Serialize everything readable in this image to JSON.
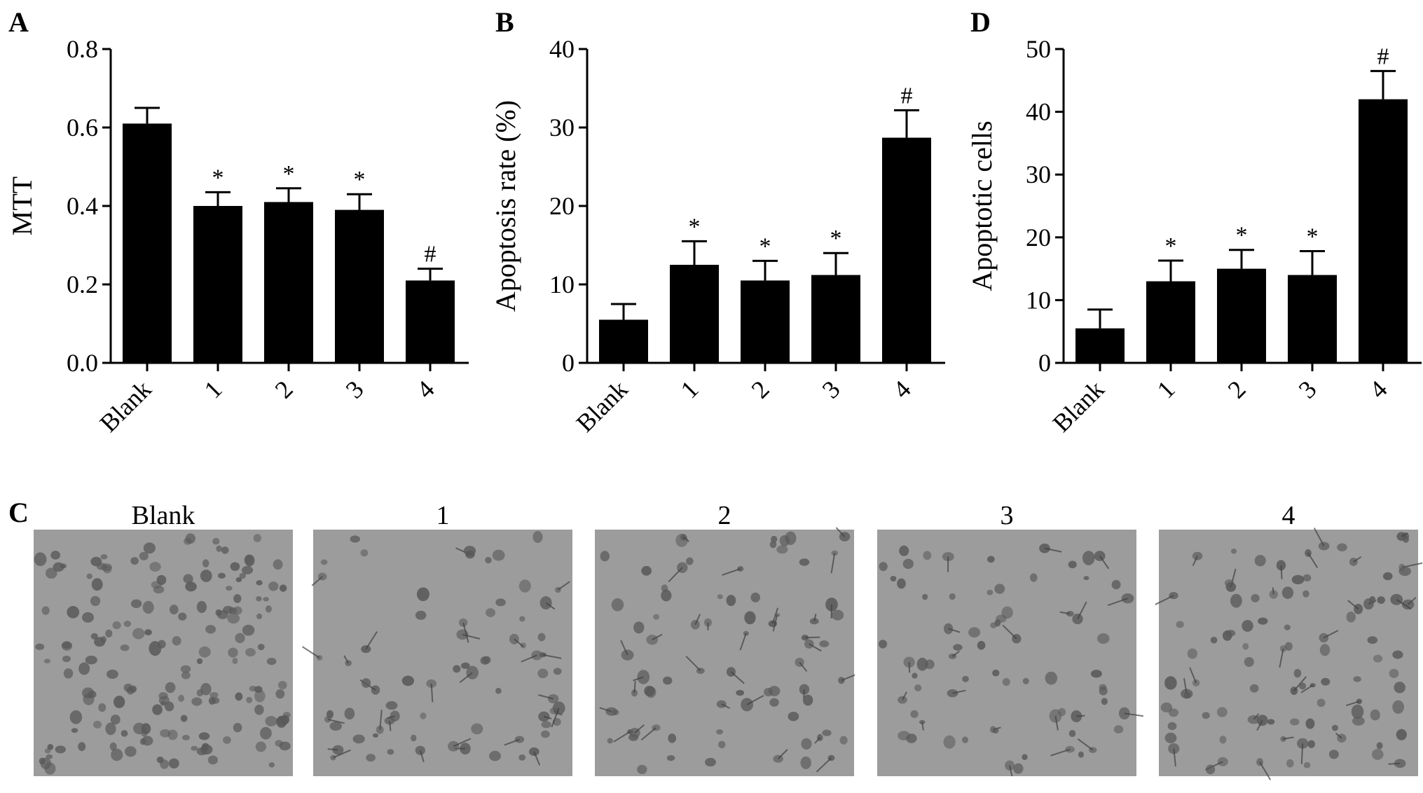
{
  "chart_data": [
    {
      "panel": "A",
      "type": "bar",
      "categories": [
        "Blank",
        "1",
        "2",
        "3",
        "4"
      ],
      "values": [
        0.61,
        0.4,
        0.41,
        0.39,
        0.21
      ],
      "errors": [
        0.04,
        0.035,
        0.035,
        0.04,
        0.03
      ],
      "significance": [
        "",
        "*",
        "*",
        "*",
        "#"
      ],
      "ylabel": "MTT",
      "ylim": [
        0,
        0.8
      ],
      "yticks": [
        "0.0",
        "0.2",
        "0.4",
        "0.6",
        "0.8"
      ],
      "bar_color": "#000000"
    },
    {
      "panel": "B",
      "type": "bar",
      "categories": [
        "Blank",
        "1",
        "2",
        "3",
        "4"
      ],
      "values": [
        5.5,
        12.5,
        10.5,
        11.2,
        28.7
      ],
      "errors": [
        2.0,
        3.0,
        2.5,
        2.8,
        3.5
      ],
      "significance": [
        "",
        "*",
        "*",
        "*",
        "#"
      ],
      "ylabel": "Apoptosis rate (%)",
      "ylim": [
        0,
        40
      ],
      "yticks": [
        "0",
        "10",
        "20",
        "30",
        "40"
      ],
      "bar_color": "#000000"
    },
    {
      "panel": "D",
      "type": "bar",
      "categories": [
        "Blank",
        "1",
        "2",
        "3",
        "4"
      ],
      "values": [
        5.5,
        13.0,
        15.0,
        14.0,
        42.0
      ],
      "errors": [
        3.0,
        3.3,
        3.0,
        3.8,
        4.5
      ],
      "significance": [
        "",
        "*",
        "*",
        "*",
        "#"
      ],
      "ylabel": "Apoptotic cells",
      "ylim": [
        0,
        50
      ],
      "yticks": [
        "0",
        "10",
        "20",
        "30",
        "40",
        "50"
      ],
      "bar_color": "#000000"
    }
  ],
  "panel_c": {
    "letter": "C",
    "titles": [
      "Blank",
      "1",
      "2",
      "3",
      "4"
    ],
    "image_bg": "#9c9c9c",
    "cell_color": "#5a5a5a",
    "density": [
      170,
      70,
      75,
      70,
      95
    ]
  }
}
